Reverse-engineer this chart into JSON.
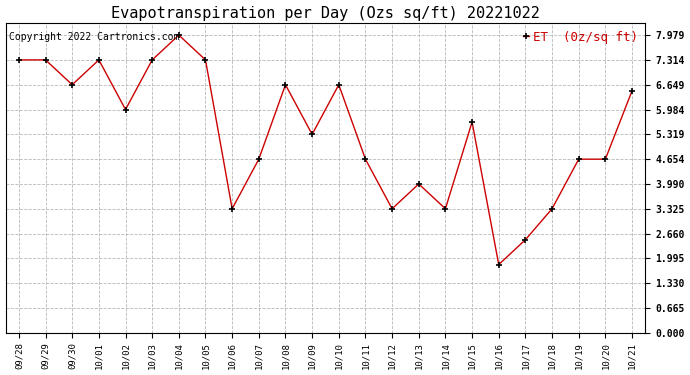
{
  "title": "Evapotranspiration per Day (Ozs sq/ft) 20221022",
  "copyright_text": "Copyright 2022 Cartronics.com",
  "legend_label": "ET  (0z/sq ft)",
  "x_labels": [
    "09/28",
    "09/29",
    "09/30",
    "10/01",
    "10/02",
    "10/03",
    "10/04",
    "10/05",
    "10/06",
    "10/07",
    "10/08",
    "10/09",
    "10/10",
    "10/11",
    "10/12",
    "10/13",
    "10/14",
    "10/15",
    "10/16",
    "10/17",
    "10/18",
    "10/19",
    "10/20",
    "10/21"
  ],
  "y_values": [
    7.314,
    7.314,
    6.649,
    7.314,
    5.984,
    7.314,
    7.979,
    7.314,
    3.325,
    4.654,
    6.649,
    5.319,
    6.649,
    4.654,
    3.325,
    3.99,
    3.325,
    5.65,
    1.83,
    2.495,
    3.325,
    4.654,
    4.654,
    6.484
  ],
  "line_color": "#cc0000",
  "marker_color": "#000000",
  "grid_color": "#b0b0b0",
  "background_color": "#ffffff",
  "title_fontsize": 11,
  "copyright_fontsize": 7,
  "legend_fontsize": 9,
  "y_tick_values": [
    0.0,
    0.665,
    1.33,
    1.995,
    2.66,
    3.325,
    3.99,
    4.654,
    5.319,
    5.984,
    6.649,
    7.314,
    7.979
  ],
  "ylim": [
    0.0,
    8.3
  ],
  "figsize": [
    6.9,
    3.75
  ],
  "dpi": 100
}
